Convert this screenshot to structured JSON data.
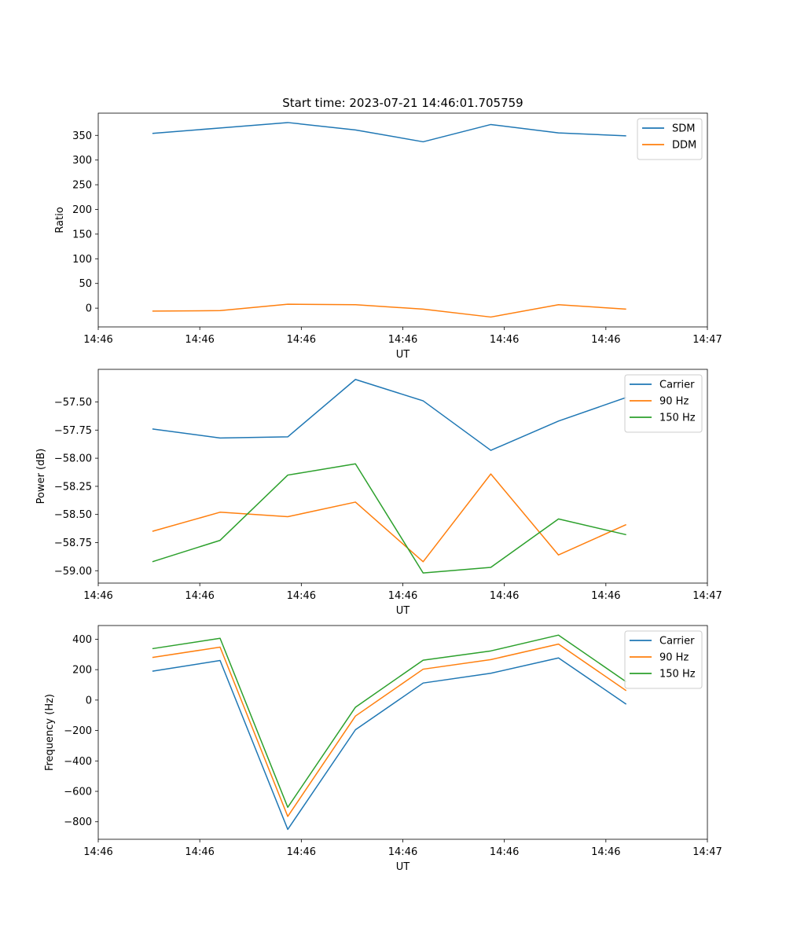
{
  "chart_data": [
    {
      "type": "line",
      "title": "Start time: 2023-07-21 14:46:01.705759",
      "xlabel": "UT",
      "ylabel": "Ratio",
      "x": [
        1,
        2,
        3,
        4,
        5,
        6,
        7,
        8
      ],
      "xlim": [
        0.2,
        9.2
      ],
      "xticks": [
        0.2,
        1.7,
        3.2,
        4.7,
        6.2,
        7.7,
        9.2
      ],
      "xtick_labels": [
        "14:46",
        "14:46",
        "14:46",
        "14:46",
        "14:46",
        "14:46",
        "14:47"
      ],
      "ylim": [
        -38,
        395
      ],
      "yticks": [
        0,
        50,
        100,
        150,
        200,
        250,
        300,
        350
      ],
      "ytick_labels": [
        "0",
        "50",
        "100",
        "150",
        "200",
        "250",
        "300",
        "350"
      ],
      "legend": "top-right",
      "series": [
        {
          "name": "SDM",
          "color": "#1f77b4",
          "values": [
            354,
            365,
            376,
            361,
            337,
            372,
            355,
            349
          ]
        },
        {
          "name": "DDM",
          "color": "#ff7f0e",
          "values": [
            -6,
            -5,
            8,
            7,
            -2,
            -18,
            7,
            -2
          ]
        }
      ]
    },
    {
      "type": "line",
      "xlabel": "UT",
      "ylabel": "Power (dB)",
      "x": [
        1,
        2,
        3,
        4,
        5,
        6,
        7,
        8
      ],
      "xlim": [
        0.2,
        9.2
      ],
      "xticks": [
        0.2,
        1.7,
        3.2,
        4.7,
        6.2,
        7.7,
        9.2
      ],
      "xtick_labels": [
        "14:46",
        "14:46",
        "14:46",
        "14:46",
        "14:46",
        "14:46",
        "14:47"
      ],
      "ylim": [
        -59.11,
        -57.21
      ],
      "yticks": [
        -59.0,
        -58.75,
        -58.5,
        -58.25,
        -58.0,
        -57.75,
        -57.5
      ],
      "ytick_labels": [
        "−59.00",
        "−58.75",
        "−58.50",
        "−58.25",
        "−58.00",
        "−57.75",
        "−57.50"
      ],
      "legend": "top-right",
      "series": [
        {
          "name": "Carrier",
          "color": "#1f77b4",
          "values": [
            -57.74,
            -57.82,
            -57.81,
            -57.3,
            -57.49,
            -57.93,
            -57.67,
            -57.46
          ]
        },
        {
          "name": "90 Hz",
          "color": "#ff7f0e",
          "values": [
            -58.65,
            -58.48,
            -58.52,
            -58.39,
            -58.92,
            -58.14,
            -58.86,
            -58.59
          ]
        },
        {
          "name": "150 Hz",
          "color": "#2ca02c",
          "values": [
            -58.92,
            -58.73,
            -58.15,
            -58.05,
            -59.02,
            -58.97,
            -58.54,
            -58.68
          ]
        }
      ]
    },
    {
      "type": "line",
      "xlabel": "UT",
      "ylabel": "Frequency (Hz)",
      "x": [
        1,
        2,
        3,
        4,
        5,
        6,
        7,
        8
      ],
      "xlim": [
        0.2,
        9.2
      ],
      "xticks": [
        0.2,
        1.7,
        3.2,
        4.7,
        6.2,
        7.7,
        9.2
      ],
      "xtick_labels": [
        "14:46",
        "14:46",
        "14:46",
        "14:46",
        "14:46",
        "14:46",
        "14:47"
      ],
      "ylim": [
        -915,
        490
      ],
      "yticks": [
        -800,
        -600,
        -400,
        -200,
        0,
        200,
        400
      ],
      "ytick_labels": [
        "−800",
        "−600",
        "−400",
        "−200",
        "0",
        "200",
        "400"
      ],
      "legend": "top-right",
      "series": [
        {
          "name": "Carrier",
          "color": "#1f77b4",
          "values": [
            190,
            260,
            -850,
            -195,
            112,
            176,
            277,
            -27
          ]
        },
        {
          "name": "90 Hz",
          "color": "#ff7f0e",
          "values": [
            280,
            348,
            -765,
            -105,
            203,
            266,
            368,
            62
          ]
        },
        {
          "name": "150 Hz",
          "color": "#2ca02c",
          "values": [
            338,
            406,
            -705,
            -47,
            262,
            323,
            427,
            120
          ]
        }
      ]
    }
  ]
}
